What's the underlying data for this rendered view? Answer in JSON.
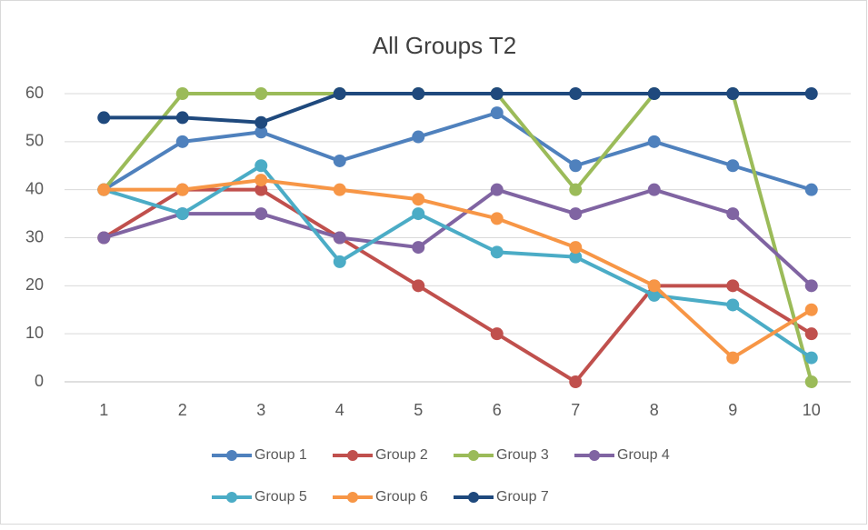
{
  "chart_data": {
    "type": "line",
    "title": "All Groups T2",
    "categories": [
      "1",
      "2",
      "3",
      "4",
      "5",
      "6",
      "7",
      "8",
      "9",
      "10"
    ],
    "series": [
      {
        "name": "Group 1",
        "color": "#4F81BD",
        "values": [
          40,
          50,
          52,
          46,
          51,
          56,
          45,
          50,
          45,
          40
        ]
      },
      {
        "name": "Group 2",
        "color": "#C0504D",
        "values": [
          30,
          40,
          40,
          30,
          20,
          10,
          0,
          20,
          20,
          10
        ]
      },
      {
        "name": "Group 3",
        "color": "#9BBB59",
        "values": [
          40,
          60,
          60,
          60,
          60,
          60,
          40,
          60,
          60,
          0
        ]
      },
      {
        "name": "Group 4",
        "color": "#8064A2",
        "values": [
          30,
          35,
          35,
          30,
          28,
          40,
          35,
          40,
          35,
          20
        ]
      },
      {
        "name": "Group 5",
        "color": "#4BACC6",
        "values": [
          40,
          35,
          45,
          25,
          35,
          27,
          26,
          18,
          16,
          5
        ]
      },
      {
        "name": "Group 6",
        "color": "#F79646",
        "values": [
          40,
          40,
          42,
          40,
          38,
          34,
          28,
          20,
          5,
          15
        ]
      },
      {
        "name": "Group 7",
        "color": "#1F497D",
        "values": [
          55,
          55,
          54,
          60,
          60,
          60,
          60,
          60,
          60,
          60
        ]
      }
    ],
    "ylim": [
      0,
      60
    ],
    "yticks": [
      0,
      10,
      20,
      30,
      40,
      50,
      60
    ],
    "grid": true,
    "legend": "bottom"
  }
}
